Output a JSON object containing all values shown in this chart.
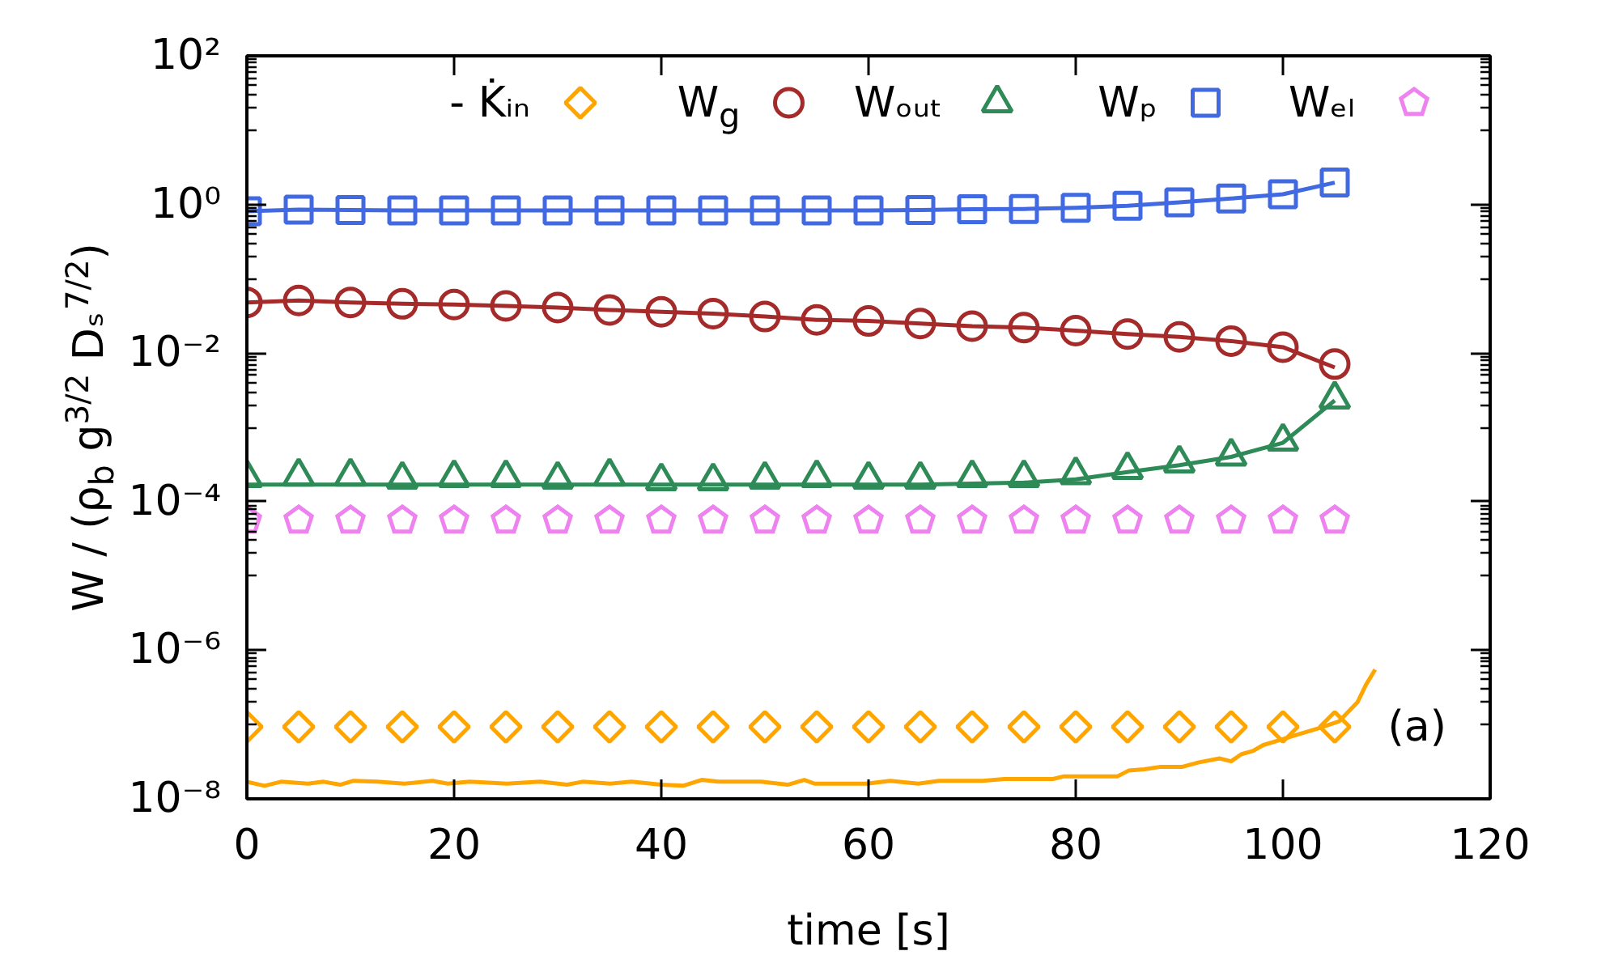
{
  "chart_data": {
    "type": "scatter",
    "xlabel": "time [s]",
    "ylabel": "W / (ρ$_{b}$ g$^{3/2}$ Dₛ$^{7/2}$)",
    "annotations": [
      "(a)"
    ],
    "log": true,
    "legend": "top",
    "x": [
      0,
      5,
      10,
      15,
      20,
      25,
      30,
      35,
      40,
      45,
      50,
      55,
      60,
      65,
      70,
      75,
      80,
      85,
      90,
      95,
      100,
      105
    ],
    "xlim": [
      0,
      120
    ],
    "xticks": [
      0,
      20,
      40,
      60,
      80,
      100,
      120
    ],
    "ylim": [
      1e-08,
      100
    ],
    "yticks": [
      {
        "value": 1e-08,
        "label": "10⁻⁸"
      },
      {
        "value": 1e-07,
        "label": null
      },
      {
        "value": 2e-07,
        "label": null
      },
      {
        "value": 3e-07,
        "label": null
      },
      {
        "value": 4e-07,
        "label": null
      },
      {
        "value": 5e-07,
        "label": null
      },
      {
        "value": 6e-07,
        "label": null
      },
      {
        "value": 7e-07,
        "label": null
      },
      {
        "value": 8e-07,
        "label": null
      },
      {
        "value": 9e-07,
        "label": null
      },
      {
        "value": 1e-06,
        "label": "10⁻⁶"
      },
      {
        "value": 1e-05,
        "label": null
      },
      {
        "value": 2e-05,
        "label": null
      },
      {
        "value": 3e-05,
        "label": null
      },
      {
        "value": 4e-05,
        "label": null
      },
      {
        "value": 5e-05,
        "label": null
      },
      {
        "value": 6e-05,
        "label": null
      },
      {
        "value": 7e-05,
        "label": null
      },
      {
        "value": 8e-05,
        "label": null
      },
      {
        "value": 9e-05,
        "label": null
      },
      {
        "value": 0.0001,
        "label": "10⁻⁴"
      },
      {
        "value": 0.001,
        "label": null
      },
      {
        "value": 0.002,
        "label": null
      },
      {
        "value": 0.003,
        "label": null
      },
      {
        "value": 0.004,
        "label": null
      },
      {
        "value": 0.005,
        "label": null
      },
      {
        "value": 0.006,
        "label": null
      },
      {
        "value": 0.007,
        "label": null
      },
      {
        "value": 0.008,
        "label": null
      },
      {
        "value": 0.009,
        "label": null
      },
      {
        "value": 0.01,
        "label": "10⁻²"
      },
      {
        "value": 0.1,
        "label": null
      },
      {
        "value": 0.2,
        "label": null
      },
      {
        "value": 0.3,
        "label": null
      },
      {
        "value": 0.4,
        "label": null
      },
      {
        "value": 0.5,
        "label": null
      },
      {
        "value": 0.6,
        "label": null
      },
      {
        "value": 0.7,
        "label": null
      },
      {
        "value": 0.8,
        "label": null
      },
      {
        "value": 0.9,
        "label": null
      },
      {
        "value": 1,
        "label": "10⁰"
      },
      {
        "value": 10,
        "label": null
      },
      {
        "value": 20,
        "label": null
      },
      {
        "value": 30,
        "label": null
      },
      {
        "value": 40,
        "label": null
      },
      {
        "value": 50,
        "label": null
      },
      {
        "value": 60,
        "label": null
      },
      {
        "value": 70,
        "label": null
      },
      {
        "value": 80,
        "label": null
      },
      {
        "value": 90,
        "label": null
      },
      {
        "value": 100,
        "label": "10²"
      }
    ],
    "series": [
      {
        "type": "line",
        "color": "#ffa500",
        "x": [
          0,
          1.7,
          3.3,
          5.9,
          7.4,
          9,
          10.3,
          12.6,
          15.2,
          17.9,
          19.4,
          21.5,
          25.1,
          28.3,
          30.9,
          32.4,
          35.1,
          37.1,
          40,
          42.1,
          43.9,
          45.5,
          49.6,
          52.2,
          53.8,
          54.8,
          59.8,
          62.1,
          64.8,
          66.8,
          71,
          73.1,
          77.8,
          78.8,
          80.9,
          84,
          85.1,
          86.6,
          88.2,
          90.3,
          91.9,
          93.9,
          95,
          96,
          97.1,
          98.1,
          99.9,
          101.2,
          103.3,
          105.4,
          107.2,
          108,
          108.9
        ],
        "values": [
          1.7e-08,
          1.5e-08,
          1.7e-08,
          1.6e-08,
          1.7e-08,
          1.55e-08,
          1.75e-08,
          1.7e-08,
          1.6e-08,
          1.75e-08,
          1.6e-08,
          1.7e-08,
          1.6e-08,
          1.7e-08,
          1.55e-08,
          1.7e-08,
          1.6e-08,
          1.7e-08,
          1.55e-08,
          1.5e-08,
          1.8e-08,
          1.7e-08,
          1.7e-08,
          1.55e-08,
          1.8e-08,
          1.6e-08,
          1.6e-08,
          1.75e-08,
          1.6e-08,
          1.75e-08,
          1.75e-08,
          1.85e-08,
          1.85e-08,
          2e-08,
          2e-08,
          2e-08,
          2.4e-08,
          2.5e-08,
          2.7e-08,
          2.7e-08,
          3.1e-08,
          3.5e-08,
          3.2e-08,
          4e-08,
          4.4e-08,
          5.3e-08,
          6.3e-08,
          7.2e-08,
          8.8e-08,
          1.1e-07,
          2e-07,
          3.4e-07,
          5.5e-07
        ]
      },
      {
        "type": "line",
        "color": "#a52a2a",
        "values": [
          0.048,
          0.051,
          0.048,
          0.046,
          0.045,
          0.043,
          0.041,
          0.038,
          0.036,
          0.034,
          0.031,
          0.028,
          0.027,
          0.025,
          0.023,
          0.022,
          0.02,
          0.018,
          0.0165,
          0.0145,
          0.012,
          0.0064
        ]
      },
      {
        "type": "line",
        "color": "#2e8b57",
        "values": [
          0.00017,
          0.00017,
          0.00017,
          0.00017,
          0.00017,
          0.00017,
          0.00017,
          0.00017,
          0.00017,
          0.00017,
          0.00017,
          0.00017,
          0.00017,
          0.00017,
          0.000175,
          0.00018,
          0.0002,
          0.00025,
          0.00031,
          0.0004,
          0.00062,
          0.0023
        ]
      },
      {
        "type": "line",
        "color": "#4169e1",
        "values": [
          0.81,
          0.85,
          0.84,
          0.83,
          0.83,
          0.83,
          0.83,
          0.83,
          0.83,
          0.83,
          0.83,
          0.83,
          0.83,
          0.84,
          0.86,
          0.87,
          0.9,
          0.96,
          1.07,
          1.2,
          1.37,
          1.97
        ]
      },
      {
        "name": "- K̇ᵢₙ",
        "marker": "diamond",
        "color": "#ffa500",
        "values": [
          9.3e-08,
          9.3e-08,
          9.3e-08,
          9.3e-08,
          9.3e-08,
          9.3e-08,
          9.3e-08,
          9.3e-08,
          9.3e-08,
          9.3e-08,
          9.3e-08,
          9.3e-08,
          9.3e-08,
          9.3e-08,
          9.3e-08,
          9.3e-08,
          9.3e-08,
          9.3e-08,
          9.3e-08,
          9.3e-08,
          9.3e-08,
          9.3e-08
        ]
      },
      {
        "name": "W$_{g}$",
        "marker": "circle",
        "color": "#a52a2a",
        "values": [
          0.048,
          0.051,
          0.048,
          0.046,
          0.045,
          0.043,
          0.041,
          0.038,
          0.036,
          0.034,
          0.031,
          0.028,
          0.027,
          0.025,
          0.023,
          0.022,
          0.02,
          0.018,
          0.0165,
          0.0145,
          0.012,
          0.0071
        ]
      },
      {
        "name": "Wₒᵤₜ",
        "marker": "triangle",
        "color": "#2e8b57",
        "values": [
          0.00021,
          0.00022,
          0.00022,
          0.0002,
          0.00021,
          0.00021,
          0.0002,
          0.00022,
          0.00019,
          0.00019,
          0.0002,
          0.00021,
          0.0002,
          0.0002,
          0.00021,
          0.00021,
          0.00023,
          0.00027,
          0.00033,
          0.00041,
          0.00065,
          0.0024
        ]
      },
      {
        "name": "Wₚ",
        "marker": "square",
        "color": "#4169e1",
        "values": [
          0.81,
          0.85,
          0.84,
          0.83,
          0.83,
          0.83,
          0.83,
          0.83,
          0.83,
          0.83,
          0.83,
          0.83,
          0.83,
          0.84,
          0.86,
          0.87,
          0.9,
          0.96,
          1.07,
          1.2,
          1.37,
          1.97
        ]
      },
      {
        "name": "Wₑₗ",
        "color": "#ee82ee",
        "values": [
          5.6e-05,
          5.6e-05,
          5.6e-05,
          5.6e-05,
          5.6e-05,
          5.6e-05,
          5.6e-05,
          5.6e-05,
          5.6e-05,
          5.6e-05,
          5.6e-05,
          5.6e-05,
          5.6e-05,
          5.6e-05,
          5.6e-05,
          5.6e-05,
          5.6e-05,
          5.6e-05,
          5.6e-05,
          5.6e-05,
          5.6e-05,
          5.6e-05
        ]
      }
    ]
  }
}
